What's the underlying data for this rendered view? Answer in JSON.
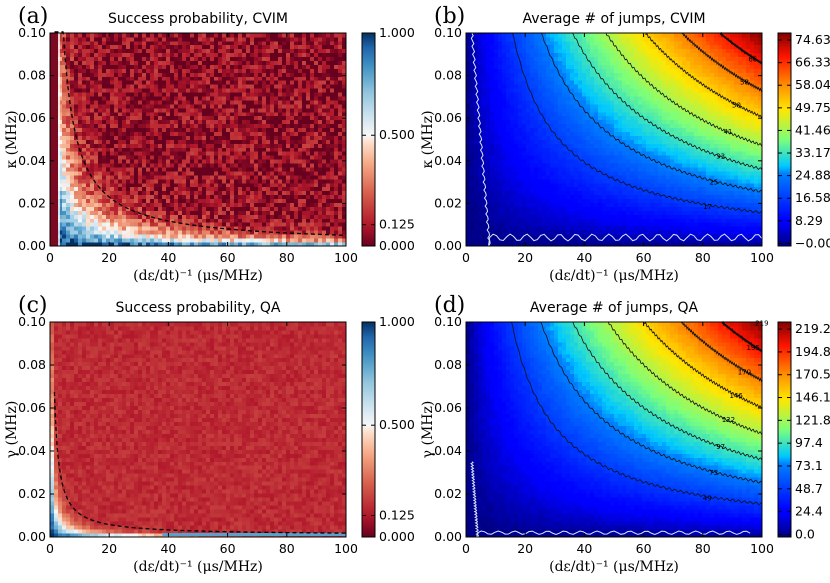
{
  "chart_data": [
    {
      "panel": "(a)",
      "type": "heatmap",
      "title": "Success probability, CVIM",
      "xlabel": "(dε/dt)⁻¹ (μs/MHz)",
      "ylabel": "κ (MHz)",
      "xlim": [
        0,
        100
      ],
      "ylim": [
        0,
        0.1
      ],
      "xticks": [
        "0",
        "20",
        "40",
        "60",
        "80",
        "100"
      ],
      "yticks": [
        "0.00",
        "0.02",
        "0.04",
        "0.06",
        "0.08",
        "0.10"
      ],
      "colormap": "RdBu",
      "colorbar_ticks": [
        "0.000",
        "0.125",
        "0.500",
        "1.000"
      ],
      "overlay": "dashed boundary curve (γ·τ ≈ 0.45)"
    },
    {
      "panel": "(b)",
      "type": "heatmap",
      "title": "Average # of jumps, CVIM",
      "xlabel": "(dε/dt)⁻¹ (μs/MHz)",
      "ylabel": "κ (MHz)",
      "xlim": [
        0,
        100
      ],
      "ylim": [
        0,
        0.1
      ],
      "xticks": [
        "0",
        "20",
        "40",
        "60",
        "80",
        "100"
      ],
      "yticks": [
        "0.00",
        "0.02",
        "0.04",
        "0.06",
        "0.08",
        "0.10"
      ],
      "colormap": "jet",
      "colorbar_ticks": [
        "−0.00",
        "8.29",
        "16.58",
        "24.88",
        "33.17",
        "41.46",
        "49.75",
        "58.04",
        "66.33",
        "74.63"
      ],
      "contour_labels": [
        "17",
        "25",
        "33",
        "41",
        "50",
        "58",
        "66"
      ]
    },
    {
      "panel": "(c)",
      "type": "heatmap",
      "title": "Success probability, QA",
      "xlabel": "(dε/dt)⁻¹ (μs/MHz)",
      "ylabel": "γ (MHz)",
      "xlim": [
        0,
        100
      ],
      "ylim": [
        0,
        0.1
      ],
      "xticks": [
        "0",
        "20",
        "40",
        "60",
        "80",
        "100"
      ],
      "yticks": [
        "0.00",
        "0.02",
        "0.04",
        "0.06",
        "0.08",
        "0.10"
      ],
      "colormap": "RdBu",
      "colorbar_ticks": [
        "0.000",
        "0.125",
        "0.500",
        "1.000"
      ],
      "overlay": "dashed boundary curve (γ·τ ≈ 0.1)"
    },
    {
      "panel": "(d)",
      "type": "heatmap",
      "title": "Average # of jumps, QA",
      "xlabel": "(dε/dt)⁻¹ (μs/MHz)",
      "ylabel": "γ (MHz)",
      "xlim": [
        0,
        100
      ],
      "ylim": [
        0,
        0.1
      ],
      "xticks": [
        "0",
        "20",
        "40",
        "60",
        "80",
        "100"
      ],
      "yticks": [
        "0.00",
        "0.02",
        "0.04",
        "0.06",
        "0.08",
        "0.10"
      ],
      "colormap": "jet",
      "colorbar_ticks": [
        "0.0",
        "24.4",
        "48.7",
        "73.1",
        "97.4",
        "121.8",
        "146.1",
        "170.5",
        "194.8",
        "219.2"
      ],
      "contour_labels": [
        "49",
        "73",
        "97",
        "122",
        "146",
        "170",
        "195",
        "219"
      ]
    }
  ]
}
